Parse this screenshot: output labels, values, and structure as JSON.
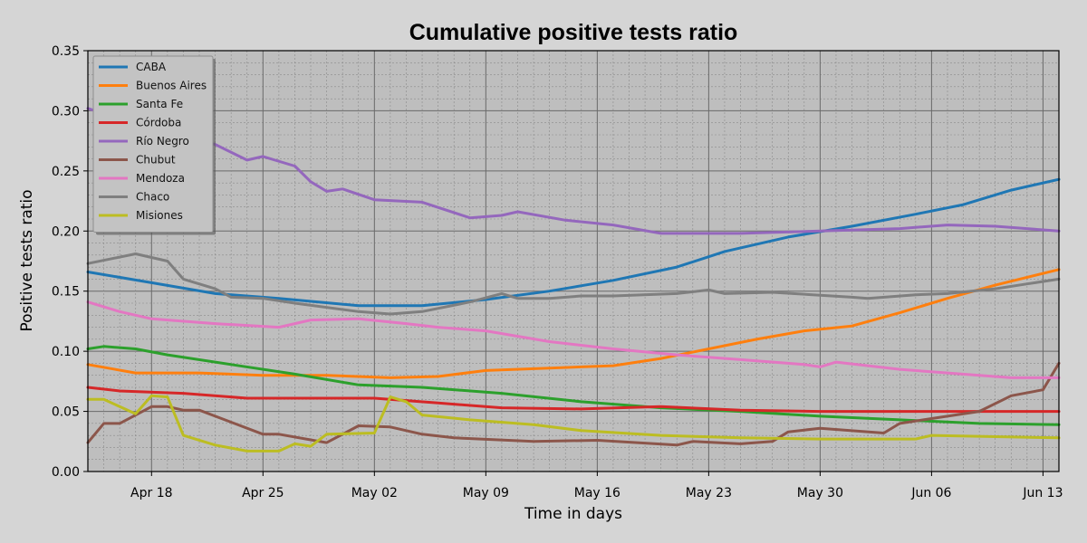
{
  "chart_data": {
    "type": "line",
    "title": "Cumulative positive tests ratio",
    "xlabel": "Time in days",
    "ylabel": "Positive tests ratio",
    "ylim": [
      0,
      0.35
    ],
    "y_ticks": [
      "0.00",
      "0.05",
      "0.10",
      "0.15",
      "0.20",
      "0.25",
      "0.30",
      "0.35"
    ],
    "x_tick_labels": [
      "Apr 18",
      "Apr 25",
      "May 02",
      "May 09",
      "May 16",
      "May 23",
      "May 30",
      "Jun 06",
      "Jun 13"
    ],
    "x_start": "2021-04-14",
    "x_end": "2021-06-14",
    "grid": true,
    "legend_position": "top-left",
    "colors": {
      "CABA": "#1f77b4",
      "Buenos Aires": "#ff7f0e",
      "Santa Fe": "#2ca02c",
      "Córdoba": "#d62728",
      "Río Negro": "#9467bd",
      "Chubut": "#8c564b",
      "Mendoza": "#e377c2",
      "Chaco": "#7f7f7f",
      "Misiones": "#bcbd22"
    },
    "series": [
      {
        "name": "CABA",
        "points": [
          [
            "2021-04-14",
            0.166
          ],
          [
            "2021-04-18",
            0.157
          ],
          [
            "2021-04-22",
            0.148
          ],
          [
            "2021-04-26",
            0.144
          ],
          [
            "2021-05-01",
            0.138
          ],
          [
            "2021-05-05",
            0.138
          ],
          [
            "2021-05-09",
            0.143
          ],
          [
            "2021-05-13",
            0.15
          ],
          [
            "2021-05-17",
            0.159
          ],
          [
            "2021-05-21",
            0.17
          ],
          [
            "2021-05-24",
            0.183
          ],
          [
            "2021-05-28",
            0.195
          ],
          [
            "2021-06-01",
            0.204
          ],
          [
            "2021-06-05",
            0.214
          ],
          [
            "2021-06-08",
            0.222
          ],
          [
            "2021-06-11",
            0.234
          ],
          [
            "2021-06-14",
            0.243
          ]
        ]
      },
      {
        "name": "Buenos Aires",
        "points": [
          [
            "2021-04-14",
            0.089
          ],
          [
            "2021-04-17",
            0.082
          ],
          [
            "2021-04-21",
            0.082
          ],
          [
            "2021-04-25",
            0.08
          ],
          [
            "2021-04-29",
            0.08
          ],
          [
            "2021-05-03",
            0.078
          ],
          [
            "2021-05-06",
            0.079
          ],
          [
            "2021-05-09",
            0.084
          ],
          [
            "2021-05-13",
            0.086
          ],
          [
            "2021-05-17",
            0.088
          ],
          [
            "2021-05-20",
            0.094
          ],
          [
            "2021-05-23",
            0.102
          ],
          [
            "2021-05-26",
            0.11
          ],
          [
            "2021-05-29",
            0.117
          ],
          [
            "2021-06-01",
            0.121
          ],
          [
            "2021-06-04",
            0.132
          ],
          [
            "2021-06-07",
            0.144
          ],
          [
            "2021-06-10",
            0.155
          ],
          [
            "2021-06-14",
            0.168
          ]
        ]
      },
      {
        "name": "Santa Fe",
        "points": [
          [
            "2021-04-14",
            0.102
          ],
          [
            "2021-04-15",
            0.104
          ],
          [
            "2021-04-17",
            0.102
          ],
          [
            "2021-04-19",
            0.097
          ],
          [
            "2021-04-23",
            0.089
          ],
          [
            "2021-04-27",
            0.081
          ],
          [
            "2021-05-01",
            0.072
          ],
          [
            "2021-05-05",
            0.07
          ],
          [
            "2021-05-10",
            0.065
          ],
          [
            "2021-05-15",
            0.058
          ],
          [
            "2021-05-20",
            0.053
          ],
          [
            "2021-05-25",
            0.05
          ],
          [
            "2021-05-30",
            0.046
          ],
          [
            "2021-06-04",
            0.043
          ],
          [
            "2021-06-09",
            0.04
          ],
          [
            "2021-06-14",
            0.039
          ]
        ]
      },
      {
        "name": "Córdoba",
        "points": [
          [
            "2021-04-14",
            0.07
          ],
          [
            "2021-04-16",
            0.067
          ],
          [
            "2021-04-20",
            0.065
          ],
          [
            "2021-04-24",
            0.061
          ],
          [
            "2021-04-28",
            0.061
          ],
          [
            "2021-05-02",
            0.061
          ],
          [
            "2021-05-06",
            0.057
          ],
          [
            "2021-05-10",
            0.053
          ],
          [
            "2021-05-15",
            0.052
          ],
          [
            "2021-05-20",
            0.054
          ],
          [
            "2021-05-25",
            0.051
          ],
          [
            "2021-05-30",
            0.05
          ],
          [
            "2021-06-04",
            0.05
          ],
          [
            "2021-06-09",
            0.05
          ],
          [
            "2021-06-14",
            0.05
          ]
        ]
      },
      {
        "name": "Río Negro",
        "points": [
          [
            "2021-04-14",
            0.302
          ],
          [
            "2021-04-18",
            0.285
          ],
          [
            "2021-04-22",
            0.272
          ],
          [
            "2021-04-24",
            0.259
          ],
          [
            "2021-04-25",
            0.262
          ],
          [
            "2021-04-27",
            0.254
          ],
          [
            "2021-04-28",
            0.241
          ],
          [
            "2021-04-29",
            0.233
          ],
          [
            "2021-04-30",
            0.235
          ],
          [
            "2021-05-02",
            0.226
          ],
          [
            "2021-05-05",
            0.224
          ],
          [
            "2021-05-08",
            0.211
          ],
          [
            "2021-05-10",
            0.213
          ],
          [
            "2021-05-11",
            0.216
          ],
          [
            "2021-05-14",
            0.209
          ],
          [
            "2021-05-17",
            0.205
          ],
          [
            "2021-05-20",
            0.198
          ],
          [
            "2021-05-25",
            0.198
          ],
          [
            "2021-05-30",
            0.2
          ],
          [
            "2021-06-04",
            0.202
          ],
          [
            "2021-06-07",
            0.205
          ],
          [
            "2021-06-10",
            0.204
          ],
          [
            "2021-06-14",
            0.2
          ]
        ]
      },
      {
        "name": "Chubut",
        "points": [
          [
            "2021-04-14",
            0.024
          ],
          [
            "2021-04-15",
            0.04
          ],
          [
            "2021-04-16",
            0.04
          ],
          [
            "2021-04-18",
            0.054
          ],
          [
            "2021-04-19",
            0.054
          ],
          [
            "2021-04-20",
            0.051
          ],
          [
            "2021-04-21",
            0.051
          ],
          [
            "2021-04-25",
            0.031
          ],
          [
            "2021-04-26",
            0.031
          ],
          [
            "2021-04-29",
            0.024
          ],
          [
            "2021-05-01",
            0.038
          ],
          [
            "2021-05-03",
            0.037
          ],
          [
            "2021-05-05",
            0.031
          ],
          [
            "2021-05-07",
            0.028
          ],
          [
            "2021-05-12",
            0.025
          ],
          [
            "2021-05-16",
            0.026
          ],
          [
            "2021-05-21",
            0.022
          ],
          [
            "2021-05-22",
            0.025
          ],
          [
            "2021-05-25",
            0.023
          ],
          [
            "2021-05-27",
            0.025
          ],
          [
            "2021-05-28",
            0.033
          ],
          [
            "2021-05-30",
            0.036
          ],
          [
            "2021-06-03",
            0.032
          ],
          [
            "2021-06-04",
            0.04
          ],
          [
            "2021-06-06",
            0.044
          ],
          [
            "2021-06-09",
            0.05
          ],
          [
            "2021-06-11",
            0.063
          ],
          [
            "2021-06-13",
            0.068
          ],
          [
            "2021-06-14",
            0.09
          ]
        ]
      },
      {
        "name": "Mendoza",
        "points": [
          [
            "2021-04-14",
            0.141
          ],
          [
            "2021-04-16",
            0.133
          ],
          [
            "2021-04-18",
            0.127
          ],
          [
            "2021-04-22",
            0.123
          ],
          [
            "2021-04-26",
            0.12
          ],
          [
            "2021-04-28",
            0.126
          ],
          [
            "2021-05-01",
            0.127
          ],
          [
            "2021-05-04",
            0.123
          ],
          [
            "2021-05-06",
            0.12
          ],
          [
            "2021-05-09",
            0.117
          ],
          [
            "2021-05-13",
            0.108
          ],
          [
            "2021-05-17",
            0.102
          ],
          [
            "2021-05-21",
            0.097
          ],
          [
            "2021-05-25",
            0.093
          ],
          [
            "2021-05-29",
            0.089
          ],
          [
            "2021-05-30",
            0.087
          ],
          [
            "2021-05-31",
            0.091
          ],
          [
            "2021-06-04",
            0.085
          ],
          [
            "2021-06-07",
            0.082
          ],
          [
            "2021-06-11",
            0.078
          ],
          [
            "2021-06-14",
            0.078
          ]
        ]
      },
      {
        "name": "Chaco",
        "points": [
          [
            "2021-04-14",
            0.173
          ],
          [
            "2021-04-17",
            0.181
          ],
          [
            "2021-04-19",
            0.175
          ],
          [
            "2021-04-20",
            0.16
          ],
          [
            "2021-04-22",
            0.152
          ],
          [
            "2021-04-23",
            0.145
          ],
          [
            "2021-04-25",
            0.144
          ],
          [
            "2021-04-27",
            0.14
          ],
          [
            "2021-05-01",
            0.133
          ],
          [
            "2021-05-03",
            0.131
          ],
          [
            "2021-05-05",
            0.133
          ],
          [
            "2021-05-08",
            0.141
          ],
          [
            "2021-05-10",
            0.148
          ],
          [
            "2021-05-11",
            0.144
          ],
          [
            "2021-05-13",
            0.144
          ],
          [
            "2021-05-15",
            0.146
          ],
          [
            "2021-05-17",
            0.146
          ],
          [
            "2021-05-21",
            0.148
          ],
          [
            "2021-05-23",
            0.151
          ],
          [
            "2021-05-24",
            0.148
          ],
          [
            "2021-05-27",
            0.149
          ],
          [
            "2021-06-01",
            0.145
          ],
          [
            "2021-06-02",
            0.144
          ],
          [
            "2021-06-05",
            0.147
          ],
          [
            "2021-06-07",
            0.148
          ],
          [
            "2021-06-10",
            0.152
          ],
          [
            "2021-06-12",
            0.156
          ],
          [
            "2021-06-14",
            0.16
          ]
        ]
      },
      {
        "name": "Misiones",
        "points": [
          [
            "2021-04-14",
            0.06
          ],
          [
            "2021-04-15",
            0.06
          ],
          [
            "2021-04-17",
            0.048
          ],
          [
            "2021-04-18",
            0.063
          ],
          [
            "2021-04-19",
            0.062
          ],
          [
            "2021-04-20",
            0.03
          ],
          [
            "2021-04-22",
            0.022
          ],
          [
            "2021-04-24",
            0.017
          ],
          [
            "2021-04-26",
            0.017
          ],
          [
            "2021-04-27",
            0.023
          ],
          [
            "2021-04-28",
            0.021
          ],
          [
            "2021-04-29",
            0.031
          ],
          [
            "2021-05-02",
            0.032
          ],
          [
            "2021-05-03",
            0.062
          ],
          [
            "2021-05-04",
            0.058
          ],
          [
            "2021-05-05",
            0.047
          ],
          [
            "2021-05-08",
            0.043
          ],
          [
            "2021-05-12",
            0.039
          ],
          [
            "2021-05-15",
            0.034
          ],
          [
            "2021-05-20",
            0.03
          ],
          [
            "2021-05-25",
            0.028
          ],
          [
            "2021-05-30",
            0.027
          ],
          [
            "2021-06-05",
            0.027
          ],
          [
            "2021-06-06",
            0.03
          ],
          [
            "2021-06-10",
            0.029
          ],
          [
            "2021-06-14",
            0.028
          ]
        ]
      }
    ]
  }
}
